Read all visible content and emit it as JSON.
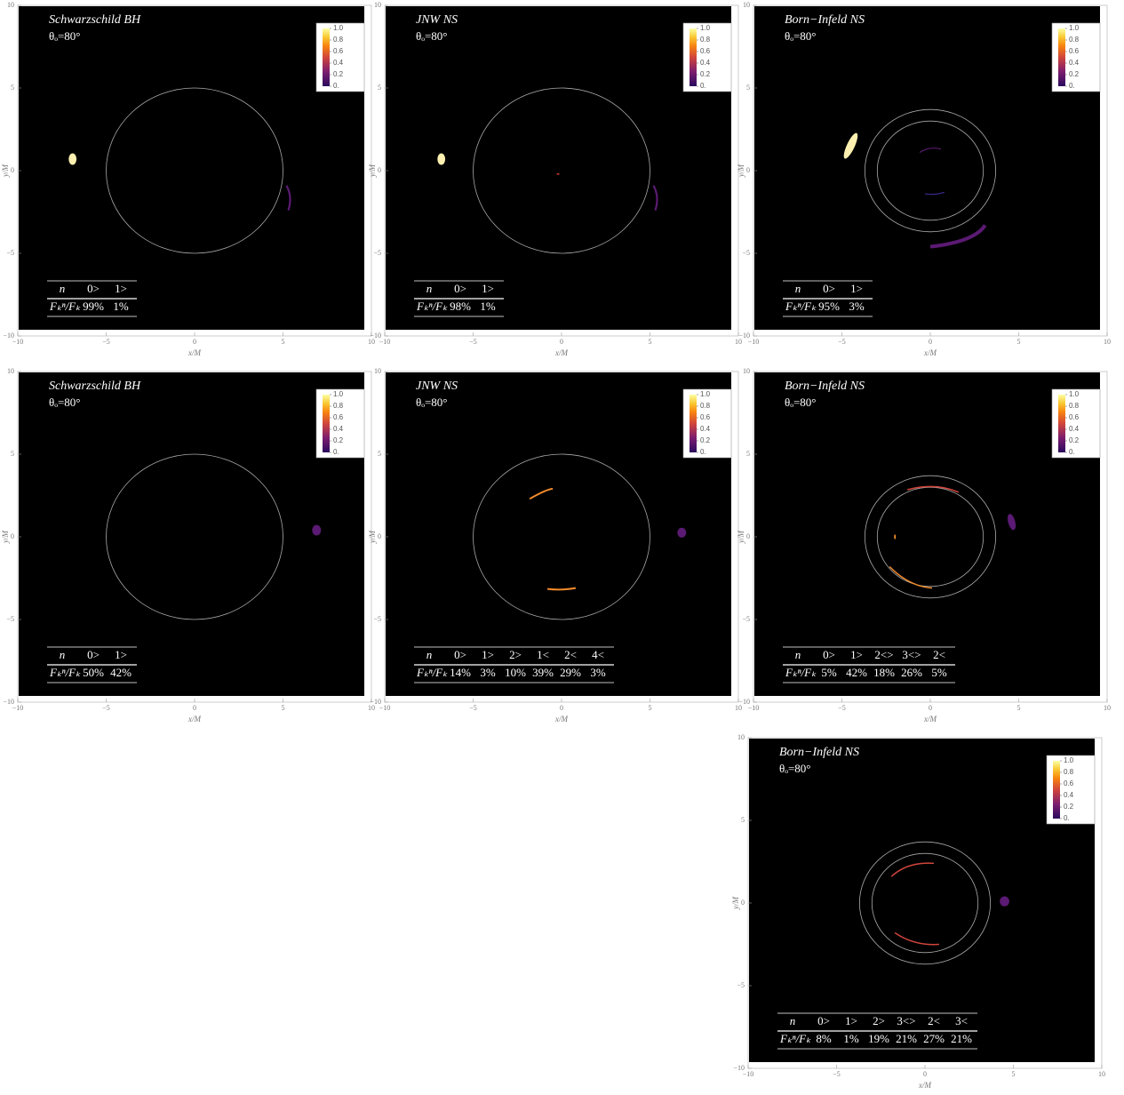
{
  "chart_data": [
    {
      "type": "image",
      "title": "Schwarzschild BH",
      "subtitle": "θₒ=80°",
      "x_label": "x/M",
      "y_label": "y/M",
      "xlim": [
        -10,
        10
      ],
      "ylim": [
        -10,
        10
      ],
      "xticks": [
        {
          "value": -10,
          "label": "−10"
        },
        {
          "value": -5,
          "label": "−5"
        },
        0,
        5,
        10
      ],
      "yticks": [
        {
          "value": -10,
          "label": "−10"
        },
        {
          "value": -5,
          "label": "−5"
        },
        0,
        5,
        10
      ],
      "colorbar_ticks": [
        {
          "value": 0,
          "label": "0."
        },
        0.2,
        0.4,
        0.6,
        0.8,
        {
          "value": 1,
          "label": "1.0"
        }
      ],
      "table": {
        "header": [
          "n",
          "0>",
          "1>"
        ],
        "row": [
          "Fₖⁿ/Fₖ",
          "99%",
          "1%"
        ]
      }
    },
    {
      "type": "image",
      "title": "JNW NS",
      "subtitle": "θₒ=80°",
      "x_label": "x/M",
      "y_label": "y/M",
      "xlim": [
        -10,
        10
      ],
      "ylim": [
        -10,
        10
      ],
      "xticks": [
        {
          "value": -10,
          "label": "−10"
        },
        {
          "value": -5,
          "label": "−5"
        },
        0,
        5,
        10
      ],
      "yticks": [
        {
          "value": -10,
          "label": "−10"
        },
        {
          "value": -5,
          "label": "−5"
        },
        0,
        5,
        10
      ],
      "colorbar_ticks": [
        {
          "value": 0,
          "label": "0."
        },
        0.2,
        0.4,
        0.6,
        0.8,
        {
          "value": 1,
          "label": "1.0"
        }
      ],
      "table": {
        "header": [
          "n",
          "0>",
          "1>"
        ],
        "row": [
          "Fₖⁿ/Fₖ",
          "98%",
          "1%"
        ]
      }
    },
    {
      "type": "image",
      "title": "Born−Infeld NS",
      "subtitle": "θₒ=80°",
      "x_label": "x/M",
      "y_label": "y/M",
      "xlim": [
        -10,
        10
      ],
      "ylim": [
        -10,
        10
      ],
      "xticks": [
        {
          "value": -10,
          "label": "−10"
        },
        {
          "value": -5,
          "label": "−5"
        },
        0,
        5,
        10
      ],
      "yticks": [
        {
          "value": -10,
          "label": "−10"
        },
        {
          "value": -5,
          "label": "−5"
        },
        0,
        5,
        10
      ],
      "colorbar_ticks": [
        {
          "value": 0,
          "label": "0."
        },
        0.2,
        0.4,
        0.6,
        0.8,
        {
          "value": 1,
          "label": "1.0"
        }
      ],
      "table": {
        "header": [
          "n",
          "0>",
          "1>"
        ],
        "row": [
          "Fₖⁿ/Fₖ",
          "95%",
          "3%"
        ]
      }
    },
    {
      "type": "image",
      "title": "Schwarzschild BH",
      "subtitle": "θₒ=80°",
      "x_label": "x/M",
      "y_label": "y/M",
      "xlim": [
        -10,
        10
      ],
      "ylim": [
        -10,
        10
      ],
      "xticks": [
        {
          "value": -10,
          "label": "−10"
        },
        {
          "value": -5,
          "label": "−5"
        },
        0,
        5,
        10
      ],
      "yticks": [
        {
          "value": -10,
          "label": "−10"
        },
        {
          "value": -5,
          "label": "−5"
        },
        0,
        5,
        10
      ],
      "colorbar_ticks": [
        {
          "value": 0,
          "label": "0."
        },
        0.2,
        0.4,
        0.6,
        0.8,
        {
          "value": 1,
          "label": "1.0"
        }
      ],
      "table": {
        "header": [
          "n",
          "0>",
          "1>"
        ],
        "row": [
          "Fₖⁿ/Fₖ",
          "50%",
          "42%"
        ]
      }
    },
    {
      "type": "image",
      "title": "JNW NS",
      "subtitle": "θₒ=80°",
      "x_label": "x/M",
      "y_label": "y/M",
      "xlim": [
        -10,
        10
      ],
      "ylim": [
        -10,
        10
      ],
      "xticks": [
        {
          "value": -10,
          "label": "−10"
        },
        {
          "value": -5,
          "label": "−5"
        },
        0,
        5,
        10
      ],
      "yticks": [
        {
          "value": -10,
          "label": "−10"
        },
        {
          "value": -5,
          "label": "−5"
        },
        0,
        5,
        10
      ],
      "colorbar_ticks": [
        {
          "value": 0,
          "label": "0."
        },
        0.2,
        0.4,
        0.6,
        0.8,
        {
          "value": 1,
          "label": "1.0"
        }
      ],
      "table": {
        "header": [
          "n",
          "0>",
          "1>",
          "2>",
          "1<",
          "2<",
          "4<"
        ],
        "row": [
          "Fₖⁿ/Fₖ",
          "14%",
          "3%",
          "10%",
          "39%",
          "29%",
          "3%"
        ]
      }
    },
    {
      "type": "image",
      "title": "Born−Infeld NS",
      "subtitle": "θₒ=80°",
      "x_label": "x/M",
      "y_label": "y/M",
      "xlim": [
        -10,
        10
      ],
      "ylim": [
        -10,
        10
      ],
      "xticks": [
        {
          "value": -10,
          "label": "−10"
        },
        {
          "value": -5,
          "label": "−5"
        },
        0,
        5,
        10
      ],
      "yticks": [
        {
          "value": -10,
          "label": "−10"
        },
        {
          "value": -5,
          "label": "−5"
        },
        0,
        5,
        10
      ],
      "colorbar_ticks": [
        {
          "value": 0,
          "label": "0."
        },
        0.2,
        0.4,
        0.6,
        0.8,
        {
          "value": 1,
          "label": "1.0"
        }
      ],
      "table": {
        "header": [
          "n",
          "0>",
          "1>",
          "2<>",
          "3<>",
          "2<"
        ],
        "row": [
          "Fₖⁿ/Fₖ",
          "5%",
          "42%",
          "18%",
          "26%",
          "5%"
        ]
      }
    },
    {
      "type": "image",
      "title": "Born−Infeld NS",
      "subtitle": "θₒ=80°",
      "x_label": "x/M",
      "y_label": "y/M",
      "xlim": [
        -10,
        10
      ],
      "ylim": [
        -10,
        10
      ],
      "xticks": [
        {
          "value": -10,
          "label": "−10"
        },
        {
          "value": -5,
          "label": "−5"
        },
        0,
        5,
        10
      ],
      "yticks": [
        {
          "value": -10,
          "label": "−10"
        },
        {
          "value": -5,
          "label": "−5"
        },
        0,
        5,
        10
      ],
      "colorbar_ticks": [
        {
          "value": 0,
          "label": "0."
        },
        0.2,
        0.4,
        0.6,
        0.8,
        {
          "value": 1,
          "label": "1.0"
        }
      ],
      "table": {
        "header": [
          "n",
          "0>",
          "1>",
          "2>",
          "3<>",
          "2<",
          "3<"
        ],
        "row": [
          "Fₖⁿ/Fₖ",
          "8%",
          "1%",
          "19%",
          "21%",
          "27%",
          "21%"
        ]
      }
    }
  ]
}
